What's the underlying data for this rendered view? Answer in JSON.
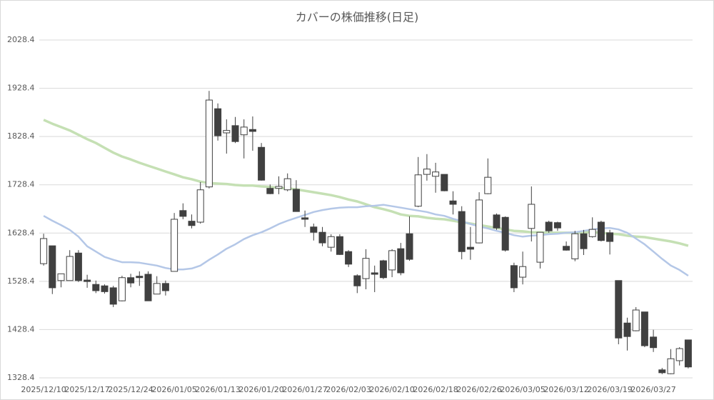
{
  "chart_data": {
    "type": "candlestick",
    "title": "カバーの株価推移(日足)",
    "categories": [
      "2025/12/10",
      null,
      null,
      null,
      null,
      "2025/12/17",
      null,
      null,
      null,
      null,
      "2025/12/24",
      null,
      null,
      null,
      null,
      "2026/01/05",
      null,
      null,
      null,
      null,
      "2026/01/13",
      null,
      null,
      null,
      null,
      "2026/01/20",
      null,
      null,
      null,
      null,
      "2026/01/27",
      null,
      null,
      null,
      null,
      "2026/02/03",
      null,
      null,
      null,
      null,
      "2026/02/10",
      null,
      null,
      null,
      null,
      "2026/02/18",
      null,
      null,
      null,
      null,
      "2026/02/26",
      null,
      null,
      null,
      null,
      "2026/03/05",
      null,
      null,
      null,
      null,
      "2026/03/12",
      null,
      null,
      null,
      null,
      "2026/03/19",
      null,
      null,
      null,
      null,
      "2026/03/27",
      null,
      null,
      null,
      null
    ],
    "open": [
      1565,
      1602,
      1530,
      1530,
      1587,
      1531,
      1522,
      1519,
      1515,
      1488,
      1536,
      1539,
      1543,
      1502,
      1524,
      1549,
      1675,
      1653,
      1651,
      1724,
      1886,
      1836,
      1851,
      1832,
      1843,
      1806,
      1721,
      1721,
      1718,
      1719,
      1660,
      1641,
      1630,
      1599,
      1621,
      1590,
      1540,
      1534,
      1546,
      1571,
      1552,
      1596,
      1627,
      1684,
      1750,
      1746,
      1750,
      1695,
      1673,
      1599,
      1608,
      1710,
      1666,
      1661,
      1561,
      1537,
      1638,
      1568,
      1651,
      1650,
      1601,
      1575,
      1627,
      1621,
      1651,
      1629,
      1530,
      1442,
      1426,
      1465,
      1413,
      1345,
      1337,
      1364,
      1407
    ],
    "high": [
      1627,
      1602,
      1544,
      1593,
      1593,
      1542,
      1530,
      1522,
      1519,
      1540,
      1544,
      1549,
      1549,
      1539,
      1530,
      1670,
      1690,
      1667,
      1734,
      1923,
      1897,
      1864,
      1869,
      1864,
      1870,
      1815,
      1729,
      1746,
      1752,
      1738,
      1675,
      1648,
      1641,
      1626,
      1626,
      1593,
      1543,
      1595,
      1561,
      1573,
      1595,
      1608,
      1663,
      1786,
      1792,
      1774,
      1750,
      1715,
      1684,
      1641,
      1713,
      1783,
      1669,
      1663,
      1567,
      1590,
      1725,
      1630,
      1654,
      1652,
      1611,
      1633,
      1635,
      1661,
      1654,
      1635,
      1530,
      1453,
      1475,
      1465,
      1428,
      1349,
      1388,
      1392,
      1407
    ],
    "low": [
      1561,
      1502,
      1516,
      1530,
      1527,
      1515,
      1504,
      1503,
      1475,
      1487,
      1516,
      1519,
      1488,
      1502,
      1499,
      1549,
      1657,
      1638,
      1648,
      1721,
      1820,
      1793,
      1815,
      1783,
      1799,
      1737,
      1709,
      1709,
      1715,
      1673,
      1641,
      1613,
      1601,
      1590,
      1583,
      1558,
      1504,
      1512,
      1506,
      1533,
      1537,
      1541,
      1571,
      1682,
      1737,
      1712,
      1715,
      1667,
      1574,
      1573,
      1607,
      1709,
      1635,
      1590,
      1506,
      1522,
      1611,
      1555,
      1629,
      1633,
      1592,
      1570,
      1583,
      1619,
      1611,
      1584,
      1398,
      1385,
      1425,
      1392,
      1382,
      1336,
      1336,
      1354,
      1348
    ],
    "close": [
      1617,
      1515,
      1544,
      1580,
      1530,
      1528,
      1509,
      1507,
      1481,
      1536,
      1525,
      1536,
      1488,
      1524,
      1509,
      1657,
      1663,
      1644,
      1718,
      1904,
      1830,
      1841,
      1818,
      1848,
      1839,
      1738,
      1710,
      1725,
      1741,
      1673,
      1657,
      1630,
      1608,
      1621,
      1584,
      1564,
      1519,
      1576,
      1543,
      1536,
      1592,
      1546,
      1574,
      1749,
      1761,
      1755,
      1716,
      1688,
      1590,
      1595,
      1697,
      1744,
      1639,
      1593,
      1515,
      1559,
      1688,
      1630,
      1633,
      1639,
      1593,
      1627,
      1596,
      1636,
      1613,
      1611,
      1411,
      1414,
      1469,
      1395,
      1391,
      1339,
      1368,
      1389,
      1351
    ],
    "up_color": "#ffffff",
    "down_color": "#404040",
    "series": [
      {
        "color": "#c5e0b4",
        "values": [
          1863,
          1855,
          1848,
          1841,
          1832,
          1823,
          1815,
          1805,
          1795,
          1787,
          1781,
          1774,
          1768,
          1762,
          1756,
          1750,
          1744,
          1740,
          1735,
          1732,
          1731,
          1730,
          1728,
          1727,
          1727,
          1725,
          1724,
          1722,
          1721,
          1719,
          1716,
          1713,
          1710,
          1707,
          1703,
          1698,
          1694,
          1688,
          1682,
          1678,
          1673,
          1667,
          1664,
          1663,
          1660,
          1658,
          1657,
          1654,
          1651,
          1648,
          1645,
          1642,
          1639,
          1636,
          1633,
          1632,
          1630,
          1630,
          1629,
          1629,
          1629,
          1629,
          1630,
          1630,
          1629,
          1627,
          1626,
          1623,
          1621,
          1620,
          1617,
          1614,
          1611,
          1607,
          1602
        ]
      },
      {
        "color": "#b4c7e7",
        "values": [
          1664,
          1654,
          1645,
          1635,
          1621,
          1601,
          1590,
          1579,
          1573,
          1568,
          1568,
          1567,
          1564,
          1561,
          1556,
          1553,
          1553,
          1555,
          1561,
          1573,
          1584,
          1596,
          1605,
          1616,
          1624,
          1630,
          1638,
          1647,
          1654,
          1660,
          1666,
          1672,
          1676,
          1679,
          1681,
          1682,
          1682,
          1684,
          1685,
          1687,
          1684,
          1681,
          1678,
          1675,
          1672,
          1667,
          1664,
          1658,
          1653,
          1647,
          1642,
          1638,
          1633,
          1629,
          1624,
          1621,
          1623,
          1624,
          1626,
          1627,
          1629,
          1630,
          1633,
          1636,
          1638,
          1639,
          1636,
          1629,
          1617,
          1605,
          1590,
          1575,
          1561,
          1552,
          1540
        ]
      }
    ],
    "ylim": [
      1328.4,
      2028.4
    ],
    "yticks": [
      1328.4,
      1428.4,
      1528.4,
      1628.4,
      1728.4,
      1828.4,
      1928.4,
      2028.4
    ],
    "grid": true
  }
}
